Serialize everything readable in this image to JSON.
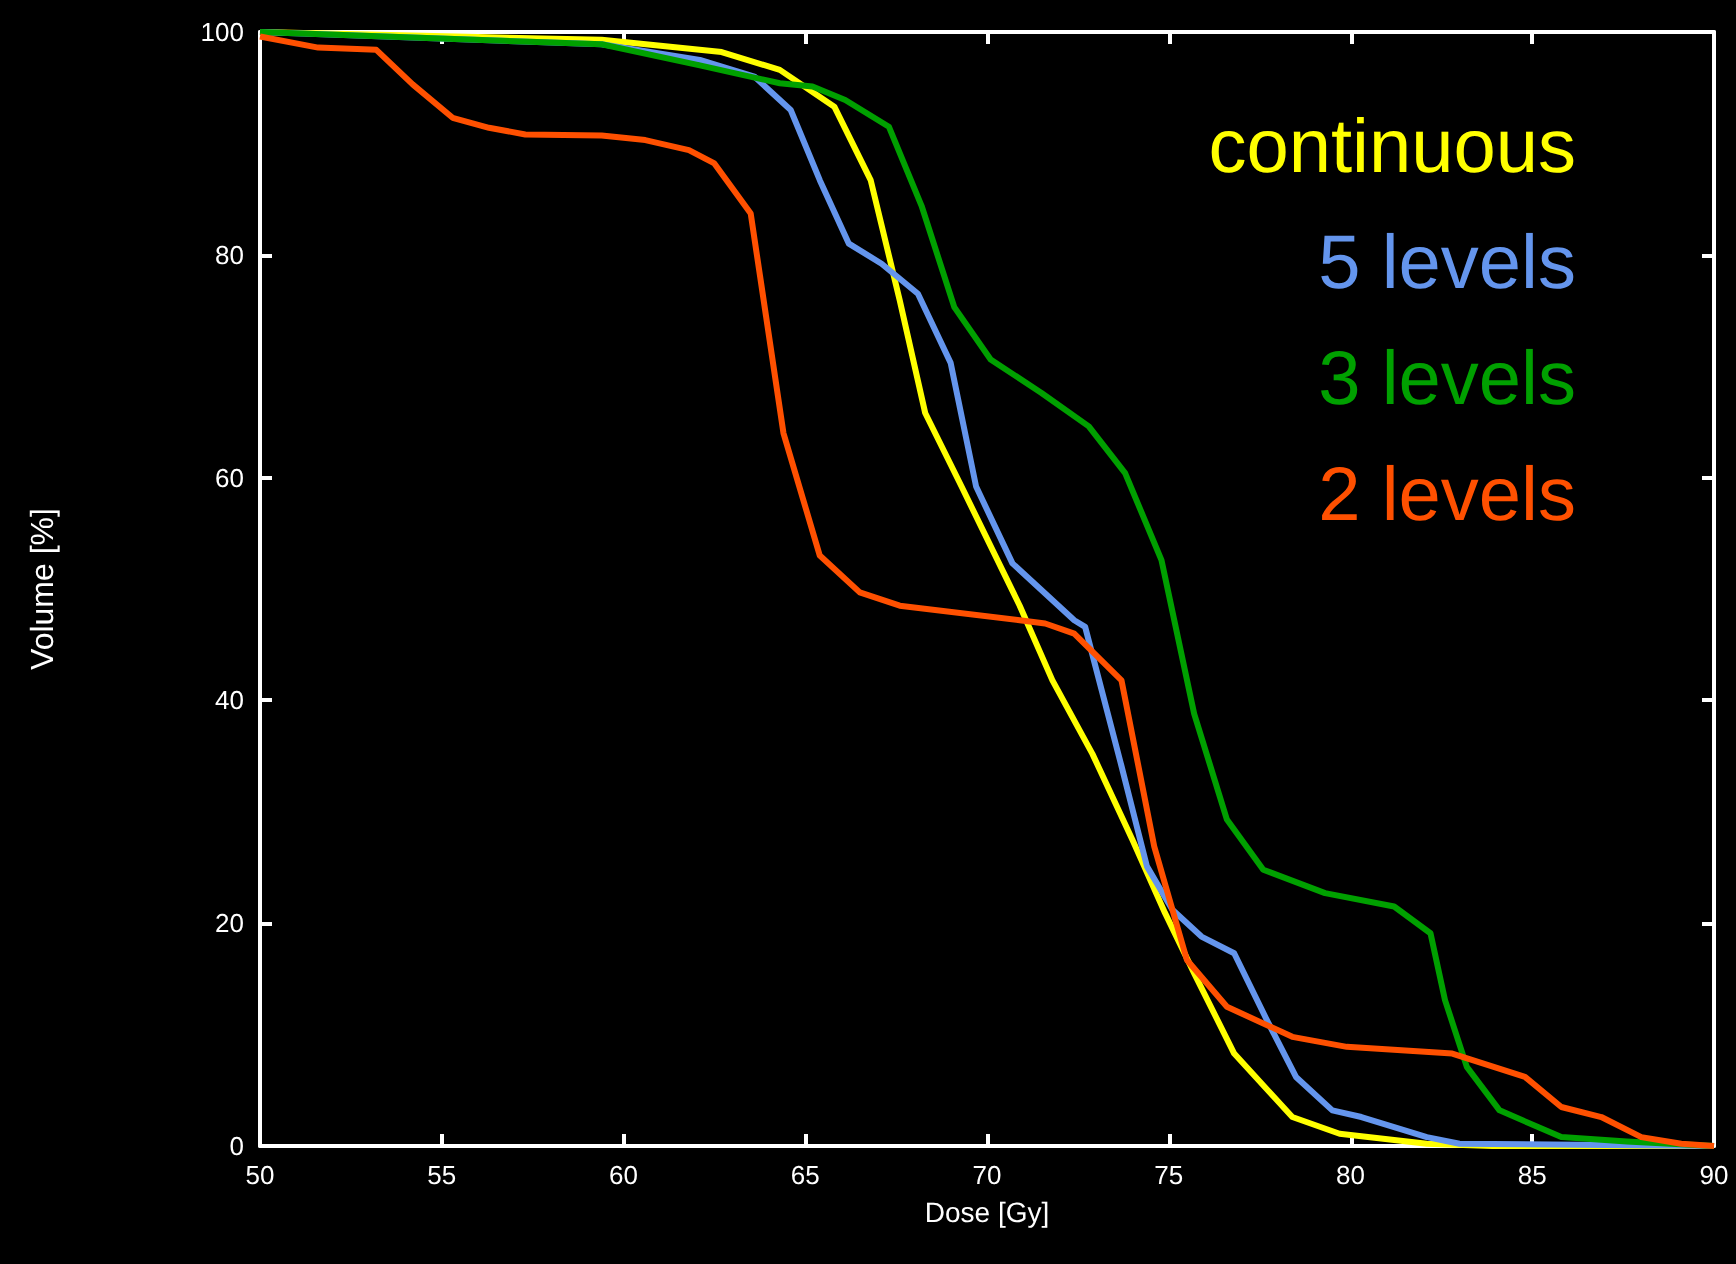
{
  "chart_data": {
    "type": "line",
    "xlabel": "Dose [Gy]",
    "ylabel": "Volume [%]",
    "xlim": [
      50,
      90
    ],
    "ylim": [
      0,
      100
    ],
    "xticks": [
      50,
      55,
      60,
      65,
      70,
      75,
      80,
      85,
      90
    ],
    "yticks": [
      0,
      20,
      40,
      60,
      80,
      100
    ],
    "grid": false,
    "legend": "top right",
    "marker": "none",
    "line_style": "solid",
    "series": [
      {
        "name": "continuous",
        "color": "#ffff00",
        "x": [
          50,
          59.4,
          62.7,
          64.3,
          65.8,
          66.8,
          67.6,
          68.3,
          69.3,
          70.9,
          71.8,
          72.9,
          74.0,
          74.9,
          75.7,
          76.8,
          78.4,
          79.7,
          82.1,
          83.9,
          90
        ],
        "values": [
          100,
          99.3,
          98.2,
          96.6,
          93.3,
          86.7,
          75.9,
          65.8,
          59.2,
          48.5,
          41.8,
          35.2,
          27.5,
          20.9,
          15.5,
          8.3,
          2.6,
          1.1,
          0.2,
          0,
          0
        ]
      },
      {
        "name": "5 levels",
        "color": "#6495ed",
        "x": [
          50,
          59.4,
          62.1,
          63.6,
          64.6,
          65.4,
          66.2,
          67.1,
          68.1,
          69.0,
          69.7,
          70.7,
          72.4,
          72.7,
          73.7,
          74.4,
          75.1,
          75.9,
          76.8,
          77.7,
          78.5,
          79.5,
          80.3,
          82.1,
          83.0,
          90
        ],
        "values": [
          100,
          98.9,
          97.5,
          96.0,
          93.0,
          86.7,
          81.0,
          79.2,
          76.5,
          70.3,
          59.2,
          52.3,
          47.2,
          46.6,
          34.1,
          25.1,
          21.2,
          18.8,
          17.3,
          11.3,
          6.2,
          3.2,
          2.6,
          0.8,
          0.2,
          0
        ]
      },
      {
        "name": "3 levels",
        "color": "#00a000",
        "x": [
          50,
          59.4,
          62.1,
          64.3,
          65.2,
          66.1,
          67.3,
          68.2,
          69.1,
          70.1,
          71.5,
          72.8,
          73.8,
          74.8,
          75.7,
          76.6,
          77.6,
          79.3,
          81.2,
          82.2,
          82.6,
          83.2,
          84.1,
          85.8,
          87.6,
          90
        ],
        "values": [
          100,
          98.9,
          97.0,
          95.4,
          95.1,
          93.9,
          91.5,
          84.4,
          75.3,
          70.6,
          67.6,
          64.6,
          60.4,
          52.6,
          38.8,
          29.3,
          24.8,
          22.7,
          21.5,
          19.1,
          13.1,
          7.1,
          3.2,
          0.8,
          0.4,
          0
        ]
      },
      {
        "name": "2 levels",
        "color": "#ff5000",
        "x": [
          50,
          51.6,
          53.2,
          54.2,
          55.3,
          56.3,
          57.3,
          59.4,
          60.6,
          61.8,
          62.5,
          63.5,
          64.4,
          65.4,
          66.5,
          67.6,
          70.9,
          71.6,
          72.4,
          73.7,
          74.6,
          75.5,
          76.6,
          78.4,
          79.9,
          82.8,
          84.8,
          85.8,
          86.9,
          88.0,
          89.1,
          90
        ],
        "values": [
          99.6,
          98.6,
          98.4,
          95.3,
          92.3,
          91.4,
          90.8,
          90.7,
          90.3,
          89.4,
          88.2,
          83.7,
          64.0,
          53.0,
          49.7,
          48.5,
          47.2,
          46.9,
          46.0,
          41.8,
          26.9,
          16.7,
          12.5,
          9.8,
          8.9,
          8.3,
          6.2,
          3.5,
          2.6,
          0.8,
          0.2,
          0
        ]
      }
    ]
  }
}
